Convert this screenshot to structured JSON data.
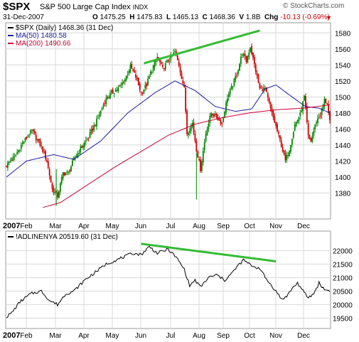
{
  "header": {
    "symbol": "$SPX",
    "name": "S&P 500 Large Cap Index",
    "exchange": "INDX",
    "date": "31-Dec-2007",
    "open_label": "O",
    "open": "1475.25",
    "high_label": "H",
    "high": "1475.83",
    "low_label": "L",
    "low": "1465.13",
    "close_label": "C",
    "close": "1468.36",
    "volume_label": "V",
    "volume": "1.8B",
    "chg_label": "Chg",
    "chg": "-10.13 (-0.69%)",
    "brand": "© StockCharts.com"
  },
  "colors": {
    "price_up": "#008800",
    "price_down": "#cc0000",
    "ma50": "#1a1a9c",
    "ma200": "#cc0033",
    "trendline": "#33bb33",
    "breadth": "#000000",
    "grid": "#d8d8d8"
  },
  "chart_data": [
    {
      "type": "line",
      "kind": "candlestick",
      "legend": [
        {
          "label": "$SPX (Daily) 1468.36 (31 Dec)"
        },
        {
          "label": "MA(50) 1480.58"
        },
        {
          "label": "MA(200) 1490.66"
        }
      ],
      "year_label": "2007",
      "months": [
        "Feb",
        "Mar",
        "Apr",
        "May",
        "Jun",
        "Jul",
        "Aug",
        "Sep",
        "Oct",
        "Nov",
        "Dec"
      ],
      "y_ticks": [
        "1380",
        "1400",
        "1420",
        "1440",
        "1460",
        "1480",
        "1500",
        "1520",
        "1540",
        "1560",
        "1580"
      ],
      "ylim": [
        1360,
        1590
      ],
      "close_anchors": [
        [
          0,
          1415
        ],
        [
          6,
          1425
        ],
        [
          13,
          1445
        ],
        [
          19,
          1458
        ],
        [
          26,
          1438
        ],
        [
          30,
          1420
        ],
        [
          34,
          1385
        ],
        [
          38,
          1376
        ],
        [
          42,
          1405
        ],
        [
          46,
          1405
        ],
        [
          50,
          1422
        ],
        [
          55,
          1435
        ],
        [
          61,
          1450
        ],
        [
          67,
          1470
        ],
        [
          73,
          1495
        ],
        [
          78,
          1505
        ],
        [
          84,
          1512
        ],
        [
          88,
          1522
        ],
        [
          92,
          1538
        ],
        [
          96,
          1525
        ],
        [
          100,
          1505
        ],
        [
          104,
          1515
        ],
        [
          107,
          1530
        ],
        [
          112,
          1550
        ],
        [
          116,
          1535
        ],
        [
          121,
          1548
        ],
        [
          125,
          1556
        ],
        [
          128,
          1540
        ],
        [
          132,
          1510
        ],
        [
          134,
          1455
        ],
        [
          138,
          1467
        ],
        [
          141,
          1435
        ],
        [
          144,
          1410
        ],
        [
          148,
          1455
        ],
        [
          152,
          1480
        ],
        [
          156,
          1475
        ],
        [
          160,
          1467
        ],
        [
          164,
          1500
        ],
        [
          168,
          1515
        ],
        [
          172,
          1535
        ],
        [
          175,
          1555
        ],
        [
          178,
          1545
        ],
        [
          181,
          1563
        ],
        [
          184,
          1540
        ],
        [
          188,
          1510
        ],
        [
          192,
          1510
        ],
        [
          196,
          1485
        ],
        [
          200,
          1463
        ],
        [
          204,
          1440
        ],
        [
          207,
          1420
        ],
        [
          210,
          1435
        ],
        [
          214,
          1465
        ],
        [
          218,
          1478
        ],
        [
          221,
          1500
        ],
        [
          224,
          1450
        ],
        [
          226,
          1445
        ],
        [
          230,
          1470
        ],
        [
          233,
          1478
        ],
        [
          236,
          1496
        ],
        [
          238,
          1492
        ],
        [
          240,
          1468
        ]
      ],
      "ma50_anchors": [
        [
          0,
          1400
        ],
        [
          15,
          1420
        ],
        [
          35,
          1428
        ],
        [
          50,
          1422
        ],
        [
          70,
          1445
        ],
        [
          90,
          1480
        ],
        [
          110,
          1505
        ],
        [
          125,
          1520
        ],
        [
          140,
          1508
        ],
        [
          155,
          1488
        ],
        [
          170,
          1482
        ],
        [
          182,
          1485
        ],
        [
          192,
          1510
        ],
        [
          200,
          1515
        ],
        [
          212,
          1500
        ],
        [
          222,
          1488
        ],
        [
          232,
          1486
        ],
        [
          240,
          1480
        ]
      ],
      "ma200_anchors": [
        [
          27,
          1362
        ],
        [
          40,
          1368
        ],
        [
          60,
          1390
        ],
        [
          80,
          1412
        ],
        [
          100,
          1432
        ],
        [
          120,
          1452
        ],
        [
          140,
          1466
        ],
        [
          160,
          1474
        ],
        [
          180,
          1480
        ],
        [
          200,
          1484
        ],
        [
          220,
          1486
        ],
        [
          240,
          1490
        ]
      ],
      "trendline": [
        [
          102,
          1542
        ],
        [
          188,
          1583
        ]
      ]
    },
    {
      "type": "line",
      "legend": [
        {
          "label": "!ADLINENYA 20519.60 (31 Dec)"
        }
      ],
      "year_label": "2007",
      "months": [
        "Feb",
        "Mar",
        "Apr",
        "May",
        "Jun",
        "Jul",
        "Aug",
        "Sep",
        "Oct",
        "Nov",
        "Dec"
      ],
      "y_ticks": [
        "19500",
        "20000",
        "20500",
        "21000",
        "21500",
        "22000"
      ],
      "ylim": [
        19300,
        22300
      ],
      "anchors": [
        [
          0,
          19550
        ],
        [
          4,
          19700
        ],
        [
          10,
          20100
        ],
        [
          18,
          20400
        ],
        [
          26,
          20500
        ],
        [
          32,
          20150
        ],
        [
          38,
          20000
        ],
        [
          44,
          20400
        ],
        [
          50,
          20500
        ],
        [
          58,
          20900
        ],
        [
          66,
          21200
        ],
        [
          74,
          21500
        ],
        [
          84,
          21700
        ],
        [
          94,
          21900
        ],
        [
          100,
          21850
        ],
        [
          106,
          22150
        ],
        [
          112,
          21900
        ],
        [
          120,
          22050
        ],
        [
          126,
          21750
        ],
        [
          132,
          21300
        ],
        [
          136,
          20700
        ],
        [
          140,
          20900
        ],
        [
          144,
          20650
        ],
        [
          150,
          21000
        ],
        [
          156,
          21100
        ],
        [
          162,
          20900
        ],
        [
          168,
          21200
        ],
        [
          172,
          21450
        ],
        [
          176,
          21650
        ],
        [
          180,
          21500
        ],
        [
          184,
          21400
        ],
        [
          188,
          21350
        ],
        [
          192,
          21000
        ],
        [
          196,
          20750
        ],
        [
          200,
          20500
        ],
        [
          204,
          20200
        ],
        [
          208,
          20300
        ],
        [
          212,
          20600
        ],
        [
          216,
          20800
        ],
        [
          220,
          20500
        ],
        [
          224,
          20250
        ],
        [
          228,
          20400
        ],
        [
          232,
          20800
        ],
        [
          236,
          20550
        ],
        [
          240,
          20520
        ]
      ],
      "trendline": [
        [
          100,
          22250
        ],
        [
          200,
          21600
        ]
      ]
    }
  ]
}
